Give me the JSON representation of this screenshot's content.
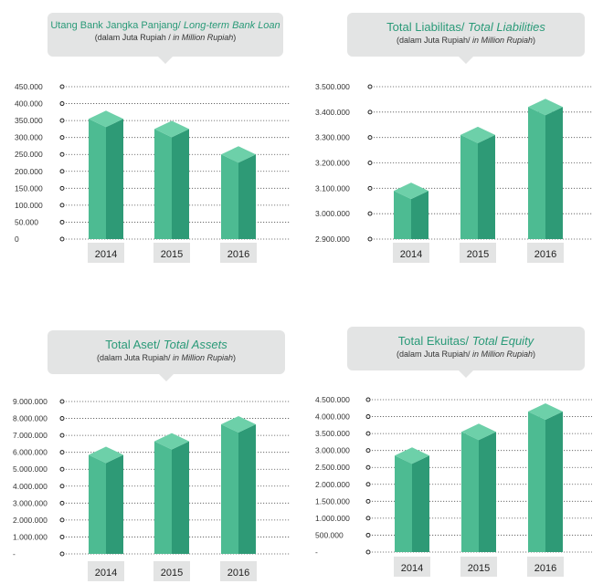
{
  "colors": {
    "bar_front": "#4dbb92",
    "bar_side": "#2e9a76",
    "bar_top": "#6dd0a9",
    "bubble_bg": "#e3e4e4",
    "title_color": "#2a9a78",
    "year_box": "#e3e4e4"
  },
  "chart_data": [
    {
      "type": "bar",
      "title_main": "Utang Bank Jangka Panjang/ ",
      "title_en": "Long-term Bank Loan",
      "subtitle_main": "(dalam Juta Rupiah / ",
      "subtitle_en": "in Million Rupiah",
      "subtitle_end": ")",
      "categories": [
        "2014",
        "2015",
        "2016"
      ],
      "values": [
        355000,
        325000,
        250000
      ],
      "ylim": [
        0,
        450000
      ],
      "yticks": [
        "0",
        "50.000",
        "100.000",
        "150.000",
        "200.000",
        "250.000",
        "300.000",
        "350.000",
        "400.000",
        "450.000"
      ],
      "grid": true
    },
    {
      "type": "bar",
      "title_main": "Total Liabilitas/ ",
      "title_en": "Total Liabilities",
      "subtitle_main": "(dalam Juta Rupiah/ ",
      "subtitle_en": "in Million Rupiah",
      "subtitle_end": ")",
      "categories": [
        "2014",
        "2015",
        "2016"
      ],
      "values": [
        3090000,
        3310000,
        3420000
      ],
      "ylim": [
        2900000,
        3500000
      ],
      "yticks": [
        "2.900.000",
        "3.000.000",
        "3.100.000",
        "3.200.000",
        "3.300.000",
        "3.400.000",
        "3.500.000"
      ],
      "grid": true
    },
    {
      "type": "bar",
      "title_main": "Total Aset/ ",
      "title_en": "Total Assets",
      "subtitle_main": "(dalam Juta Rupiah/ ",
      "subtitle_en": "in Million Rupiah",
      "subtitle_end": ")",
      "categories": [
        "2014",
        "2015",
        "2016"
      ],
      "values": [
        5850000,
        6650000,
        7650000
      ],
      "ylim": [
        0,
        9000000
      ],
      "yticks": [
        "-",
        "1.000.000",
        "2.000.000",
        "3.000.000",
        "4.000.000",
        "5.000.000",
        "6.000.000",
        "7.000.000",
        "8.000.000",
        "9.000.000"
      ],
      "grid": true
    },
    {
      "type": "bar",
      "title_main": "Total Ekuitas/ ",
      "title_en": "Total Equity",
      "subtitle_main": "(dalam Juta Rupiah/ ",
      "subtitle_en": "in Million Rupiah",
      "subtitle_end": ")",
      "categories": [
        "2014",
        "2015",
        "2016"
      ],
      "values": [
        2850000,
        3550000,
        4150000
      ],
      "ylim": [
        0,
        4500000
      ],
      "yticks": [
        "-",
        "500.000",
        "1.000.000",
        "1.500.000",
        "2.000.000",
        "2.500.000",
        "3.000.000",
        "3.500.000",
        "4.000.000",
        "4.500.000"
      ],
      "grid": true
    }
  ]
}
